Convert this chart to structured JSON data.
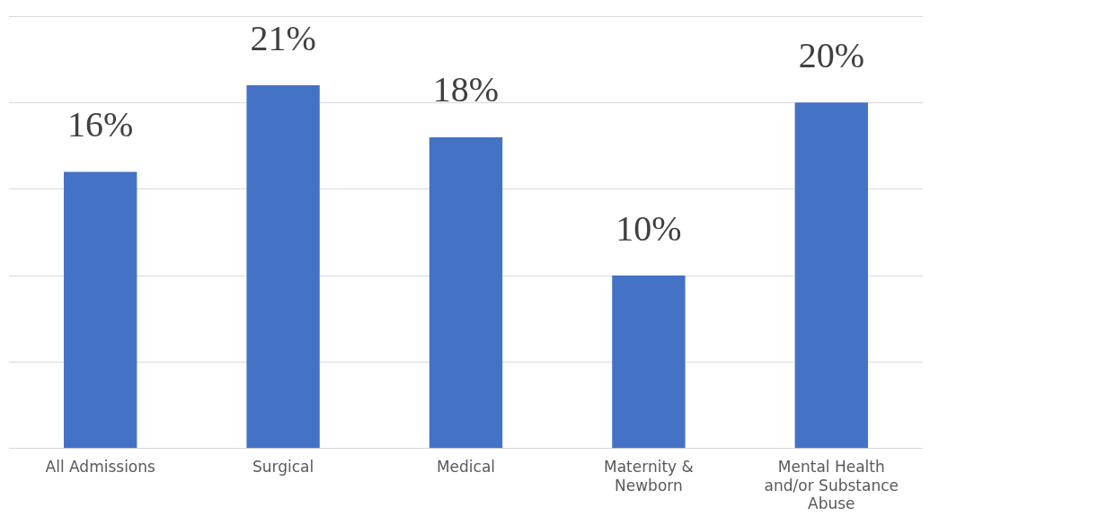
{
  "chart_data": {
    "type": "bar",
    "categories": [
      "All Admissions",
      "Surgical",
      "Medical",
      "Maternity & Newborn",
      "Mental Health and/or Substance Abuse"
    ],
    "values": [
      16,
      21,
      18,
      10,
      20
    ],
    "color": "#4472c4",
    "data_labels": true,
    "value_labels": [
      "16%",
      "21%",
      "18%",
      "10%",
      "20%"
    ],
    "ylim": [
      0,
      25
    ],
    "yticks": [
      {
        "value": 0,
        "label": null
      },
      {
        "value": 5,
        "label": null
      },
      {
        "value": 10,
        "label": null
      },
      {
        "value": 15,
        "label": null
      },
      {
        "value": 20,
        "label": null
      },
      {
        "value": 25,
        "label": null
      }
    ],
    "grid": "y",
    "tick_labels": "x",
    "legend": false
  }
}
